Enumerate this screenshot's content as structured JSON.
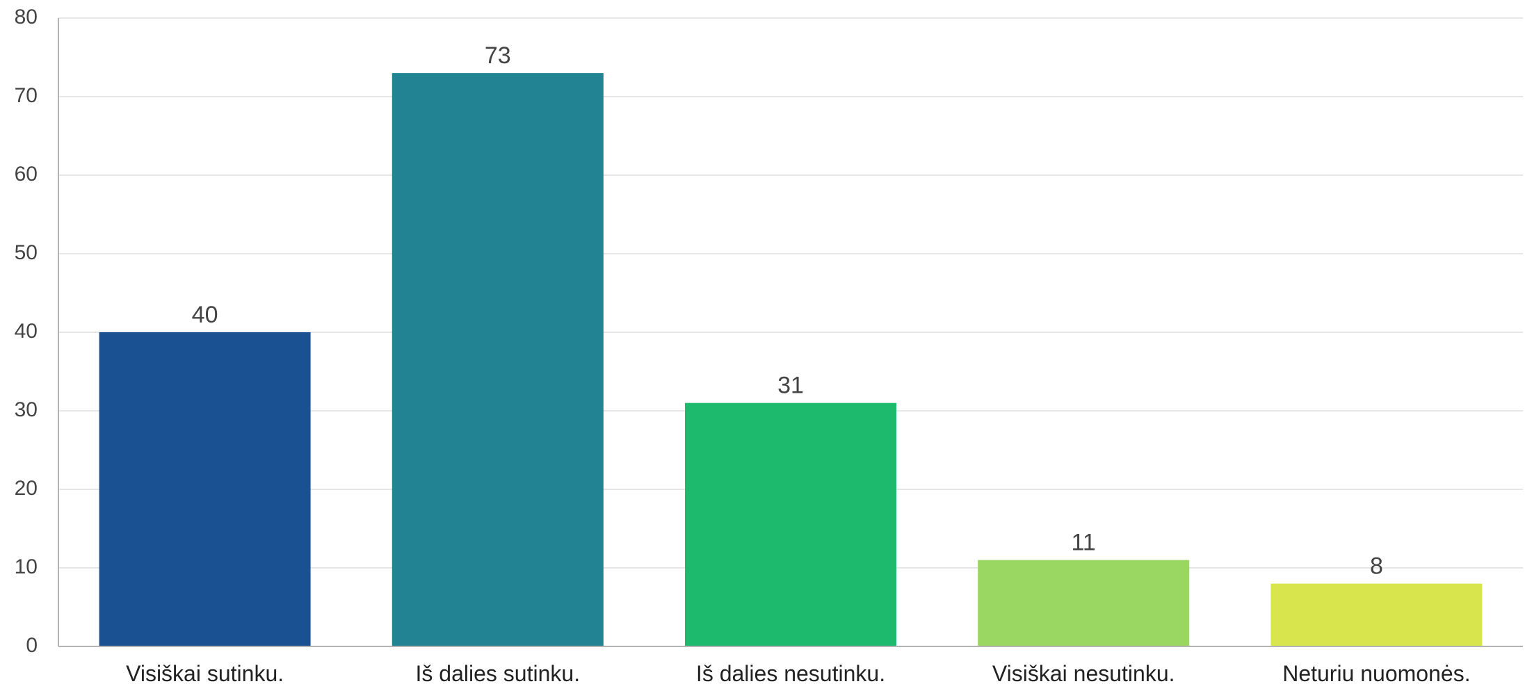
{
  "chart_data": {
    "type": "bar",
    "title": "",
    "xlabel": "",
    "ylabel": "",
    "categories": [
      "Visiškai sutinku.",
      "Iš dalies sutinku.",
      "Iš dalies nesutinku.",
      "Visiškai nesutinku.",
      "Neturiu nuomonės."
    ],
    "values": [
      40,
      73,
      31,
      11,
      8
    ],
    "colors": [
      "#1a5192",
      "#228393",
      "#1db96c",
      "#9ad662",
      "#d8e54d"
    ],
    "ylim": [
      0,
      80
    ],
    "yticks": [
      "0",
      "10",
      "20",
      "30",
      "40",
      "50",
      "60",
      "70",
      "80"
    ],
    "grid": true,
    "legend": "none",
    "data_labels": true
  }
}
